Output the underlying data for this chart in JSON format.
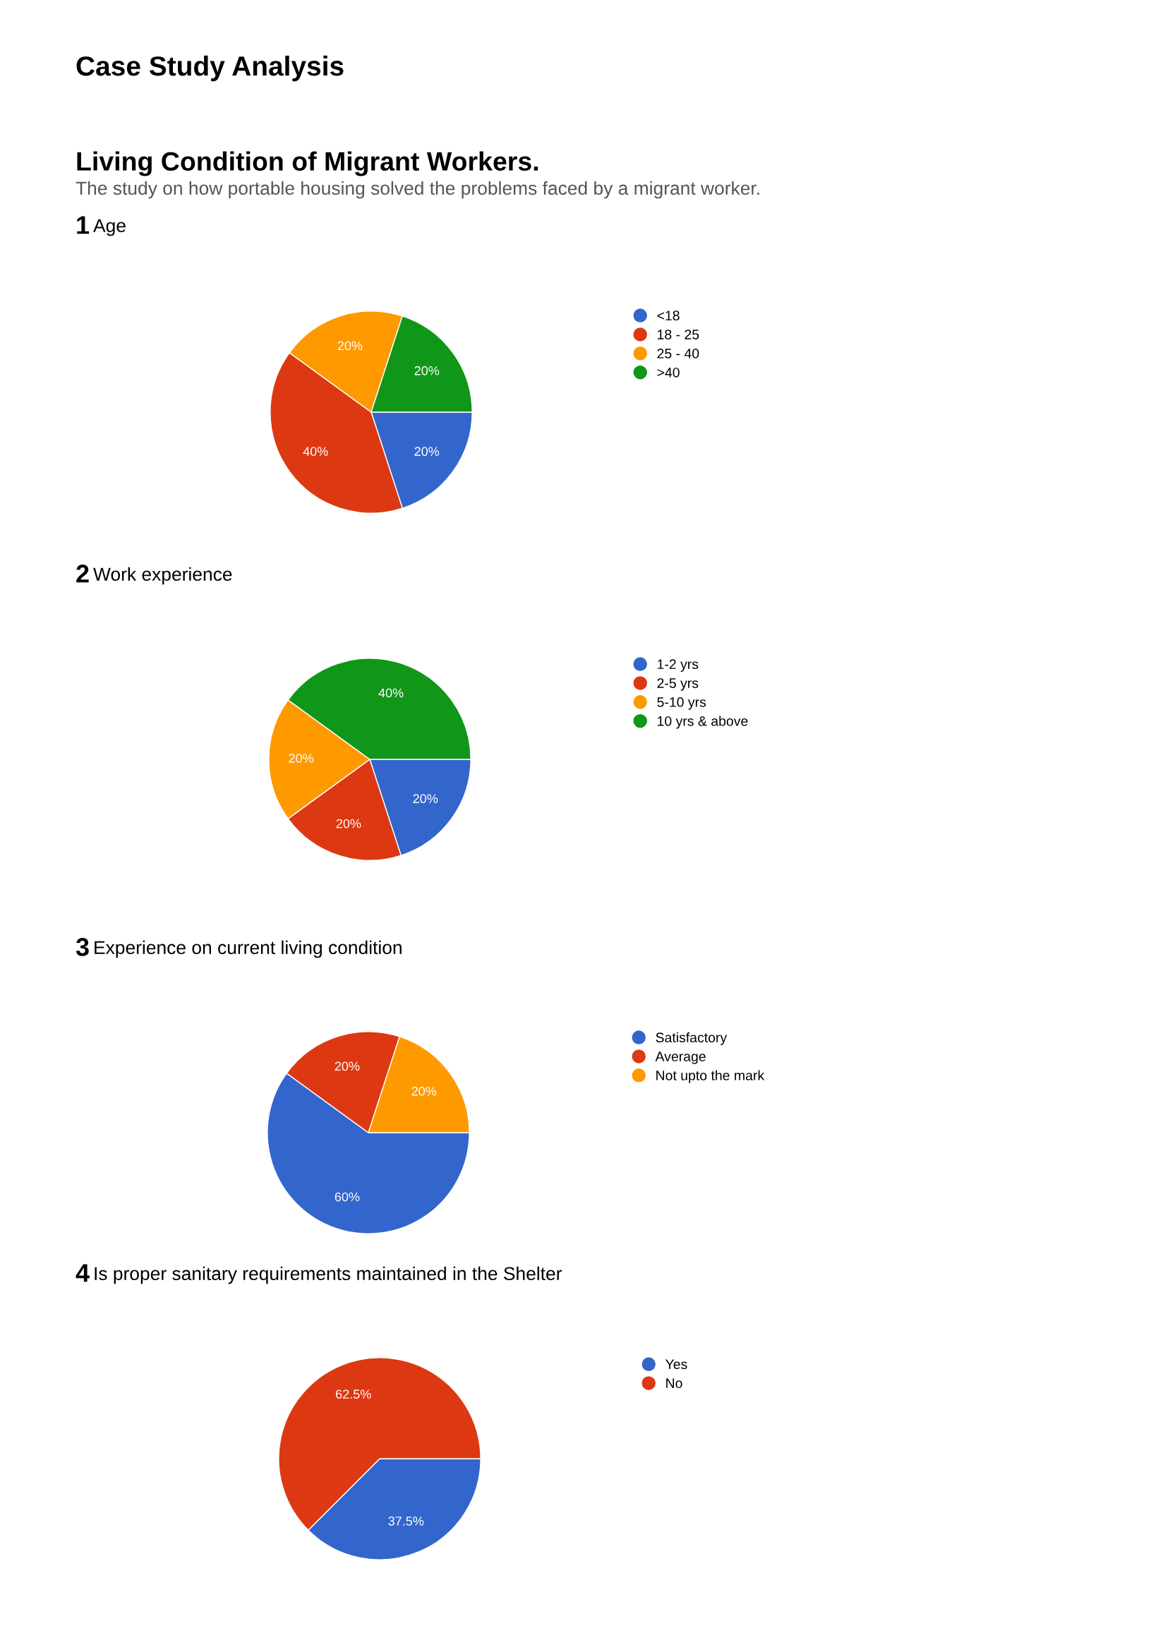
{
  "chart_data": [
    {
      "type": "pie",
      "title": "1 Age",
      "annotations": [
        "Case Study Analysis",
        "Living Condition of Migrant Workers.",
        "The study on how portable housing solved the problems faced by a migrant worker."
      ],
      "categories": [
        "<18",
        "18 - 25",
        "25 - 40",
        ">40"
      ],
      "values": [
        20,
        40,
        20,
        20
      ],
      "value_labels": [
        "20%",
        "40%",
        "20%",
        "20%"
      ],
      "colors": [
        "#3366cc",
        "#dc3912",
        "#ff9900",
        "#109618"
      ],
      "legend": "right"
    },
    {
      "type": "pie",
      "title": "2 Work experience",
      "categories": [
        "1-2 yrs",
        "2-5 yrs",
        "5-10 yrs",
        "10 yrs & above"
      ],
      "values": [
        20,
        20,
        20,
        40
      ],
      "value_labels": [
        "20%",
        "20%",
        "20%",
        "40%"
      ],
      "colors": [
        "#3366cc",
        "#dc3912",
        "#ff9900",
        "#109618"
      ],
      "legend": "right"
    },
    {
      "type": "pie",
      "title": "3 Experience on current living condition",
      "categories": [
        "Satisfactory",
        "Average",
        "Not upto the mark"
      ],
      "values": [
        60,
        20,
        20
      ],
      "value_labels": [
        "60%",
        "20%",
        "20%"
      ],
      "colors": [
        "#3366cc",
        "#dc3912",
        "#ff9900"
      ],
      "legend": "right"
    },
    {
      "type": "pie",
      "title": "4 Is proper sanitary requirements maintained in the Shelter",
      "categories": [
        "Yes",
        "No"
      ],
      "values": [
        37.5,
        62.5
      ],
      "value_labels": [
        "37.5%",
        "62.5%"
      ],
      "colors": [
        "#3366cc",
        "#dc3912"
      ],
      "legend": "right"
    }
  ]
}
